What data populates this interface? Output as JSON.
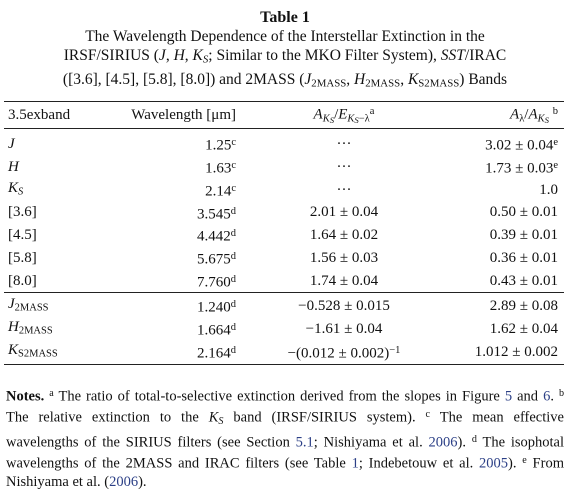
{
  "header": {
    "title": "Table 1",
    "caption": [
      [
        {
          "t": "The Wavelength Dependence of the Interstellar Extinction in the"
        }
      ],
      [
        {
          "t": "IRSF/SIRIUS ("
        },
        {
          "t": "J",
          "s": [
            "i"
          ]
        },
        {
          "t": ", "
        },
        {
          "t": "H",
          "s": [
            "i"
          ]
        },
        {
          "t": ", "
        },
        {
          "t": "K",
          "s": [
            "i"
          ]
        },
        {
          "t": "S",
          "s": [
            "i",
            "sub"
          ]
        },
        {
          "t": "; Similar to the MKO Filter System), "
        },
        {
          "t": "SST",
          "s": [
            "i"
          ]
        },
        {
          "t": "/IRAC"
        }
      ],
      [
        {
          "t": "([3.6], [4.5], [5.8], [8.0]) and 2MASS ("
        },
        {
          "t": "J",
          "s": [
            "i"
          ]
        },
        {
          "t": "2MASS",
          "s": [
            "sub"
          ]
        },
        {
          "t": ", "
        },
        {
          "t": "H",
          "s": [
            "i"
          ]
        },
        {
          "t": "2MASS",
          "s": [
            "sub"
          ]
        },
        {
          "t": ", "
        },
        {
          "t": "K",
          "s": [
            "i"
          ]
        },
        {
          "t": "S2MASS",
          "s": [
            "sub"
          ]
        },
        {
          "t": ") Bands"
        }
      ]
    ]
  },
  "table": {
    "columns": [
      [
        {
          "t": "3.5exband"
        }
      ],
      [
        {
          "t": "Wavelength [μm]"
        }
      ],
      [
        {
          "t": "A",
          "s": [
            "i"
          ]
        },
        {
          "t": "K",
          "s": [
            "i",
            "sub"
          ]
        },
        {
          "t": "S",
          "s": [
            "subsub"
          ]
        },
        {
          "t": "/"
        },
        {
          "t": "E",
          "s": [
            "i"
          ]
        },
        {
          "t": "K",
          "s": [
            "i",
            "sub"
          ]
        },
        {
          "t": "S",
          "s": [
            "subsub"
          ]
        },
        {
          "t": "−λ",
          "s": [
            "sub"
          ]
        },
        {
          "t": "a",
          "s": [
            "sup"
          ]
        }
      ],
      [
        {
          "t": "A",
          "s": [
            "i"
          ]
        },
        {
          "t": "λ",
          "s": [
            "sub"
          ]
        },
        {
          "t": "/"
        },
        {
          "t": "A",
          "s": [
            "i"
          ]
        },
        {
          "t": "K",
          "s": [
            "i",
            "sub"
          ]
        },
        {
          "t": "S",
          "s": [
            "subsub"
          ]
        },
        {
          "t": " "
        },
        {
          "t": "b",
          "s": [
            "sup"
          ]
        }
      ]
    ],
    "groups": [
      [
        [
          [
            {
              "t": "J",
              "s": [
                "i"
              ]
            }
          ],
          [
            {
              "t": "1.25"
            },
            {
              "t": "c",
              "s": [
                "sup"
              ]
            }
          ],
          [
            {
              "t": "···"
            }
          ],
          [
            {
              "t": "3.02 ± 0.04"
            },
            {
              "t": "e",
              "s": [
                "sup"
              ]
            }
          ]
        ],
        [
          [
            {
              "t": "H",
              "s": [
                "i"
              ]
            }
          ],
          [
            {
              "t": "1.63"
            },
            {
              "t": "c",
              "s": [
                "sup"
              ]
            }
          ],
          [
            {
              "t": "···"
            }
          ],
          [
            {
              "t": "1.73 ± 0.03"
            },
            {
              "t": "e",
              "s": [
                "sup"
              ]
            }
          ]
        ],
        [
          [
            {
              "t": "K",
              "s": [
                "i"
              ]
            },
            {
              "t": "S",
              "s": [
                "i",
                "sub"
              ]
            }
          ],
          [
            {
              "t": "2.14"
            },
            {
              "t": "c",
              "s": [
                "sup"
              ]
            }
          ],
          [
            {
              "t": "···"
            }
          ],
          [
            {
              "t": "1.0"
            }
          ]
        ],
        [
          [
            {
              "t": "[3.6]"
            }
          ],
          [
            {
              "t": "3.545"
            },
            {
              "t": "d",
              "s": [
                "sup"
              ]
            }
          ],
          [
            {
              "t": "2.01 ± 0.04"
            }
          ],
          [
            {
              "t": "0.50 ± 0.01"
            }
          ]
        ],
        [
          [
            {
              "t": "[4.5]"
            }
          ],
          [
            {
              "t": "4.442"
            },
            {
              "t": "d",
              "s": [
                "sup"
              ]
            }
          ],
          [
            {
              "t": "1.64 ± 0.02"
            }
          ],
          [
            {
              "t": "0.39 ± 0.01"
            }
          ]
        ],
        [
          [
            {
              "t": "[5.8]"
            }
          ],
          [
            {
              "t": "5.675"
            },
            {
              "t": "d",
              "s": [
                "sup"
              ]
            }
          ],
          [
            {
              "t": "1.56 ± 0.03"
            }
          ],
          [
            {
              "t": "0.36 ± 0.01"
            }
          ]
        ],
        [
          [
            {
              "t": "[8.0]"
            }
          ],
          [
            {
              "t": "7.760"
            },
            {
              "t": "d",
              "s": [
                "sup"
              ]
            }
          ],
          [
            {
              "t": "1.74 ± 0.04"
            }
          ],
          [
            {
              "t": "0.43 ± 0.01"
            }
          ]
        ]
      ],
      [
        [
          [
            {
              "t": "J",
              "s": [
                "i"
              ]
            },
            {
              "t": "2MASS",
              "s": [
                "sub"
              ]
            }
          ],
          [
            {
              "t": "1.240"
            },
            {
              "t": "d",
              "s": [
                "sup"
              ]
            }
          ],
          [
            {
              "t": "−0.528 ± 0.015"
            }
          ],
          [
            {
              "t": "2.89 ± 0.08"
            }
          ]
        ],
        [
          [
            {
              "t": "H",
              "s": [
                "i"
              ]
            },
            {
              "t": "2MASS",
              "s": [
                "sub"
              ]
            }
          ],
          [
            {
              "t": "1.664"
            },
            {
              "t": "d",
              "s": [
                "sup"
              ]
            }
          ],
          [
            {
              "t": "−1.61 ± 0.04"
            }
          ],
          [
            {
              "t": "1.62 ± 0.04"
            }
          ]
        ],
        [
          [
            {
              "t": "K",
              "s": [
                "i"
              ]
            },
            {
              "t": "S2MASS",
              "s": [
                "sub"
              ]
            }
          ],
          [
            {
              "t": "2.164"
            },
            {
              "t": "d",
              "s": [
                "sup"
              ]
            }
          ],
          [
            {
              "t": "−(0.012 ± 0.002)"
            },
            {
              "t": "−1",
              "s": [
                "sup"
              ]
            }
          ],
          [
            {
              "t": "1.012 ± 0.002"
            }
          ]
        ]
      ]
    ]
  },
  "notes": [
    {
      "t": "Notes.",
      "s": [
        "b"
      ]
    },
    {
      "t": " "
    },
    {
      "t": "a",
      "s": [
        "sup"
      ]
    },
    {
      "t": " The ratio of total-to-selective extinction derived from the slopes in Figure "
    },
    {
      "t": "5",
      "s": [
        "link"
      ]
    },
    {
      "t": " and "
    },
    {
      "t": "6",
      "s": [
        "link"
      ]
    },
    {
      "t": ". "
    },
    {
      "t": "b",
      "s": [
        "sup"
      ]
    },
    {
      "t": " The relative extinction to the "
    },
    {
      "t": "K",
      "s": [
        "i"
      ]
    },
    {
      "t": "S",
      "s": [
        "i",
        "sub"
      ]
    },
    {
      "t": " band (IRSF/SIRIUS system). "
    },
    {
      "t": "c",
      "s": [
        "sup"
      ]
    },
    {
      "t": " The mean effective wavelengths of the SIRIUS filters (see Section "
    },
    {
      "t": "5.1",
      "s": [
        "link"
      ]
    },
    {
      "t": "; Nishiyama et al. "
    },
    {
      "t": "2006",
      "s": [
        "link"
      ]
    },
    {
      "t": "). "
    },
    {
      "t": "d",
      "s": [
        "sup"
      ]
    },
    {
      "t": " The isophotal wavelengths of the 2MASS and IRAC filters (see Table "
    },
    {
      "t": "1",
      "s": [
        "link"
      ]
    },
    {
      "t": "; Indebetouw et al. "
    },
    {
      "t": "2005",
      "s": [
        "link"
      ]
    },
    {
      "t": "). "
    },
    {
      "t": "e",
      "s": [
        "sup"
      ]
    },
    {
      "t": " From Nishiyama et al. ("
    },
    {
      "t": "2006",
      "s": [
        "link"
      ]
    },
    {
      "t": ")."
    }
  ]
}
